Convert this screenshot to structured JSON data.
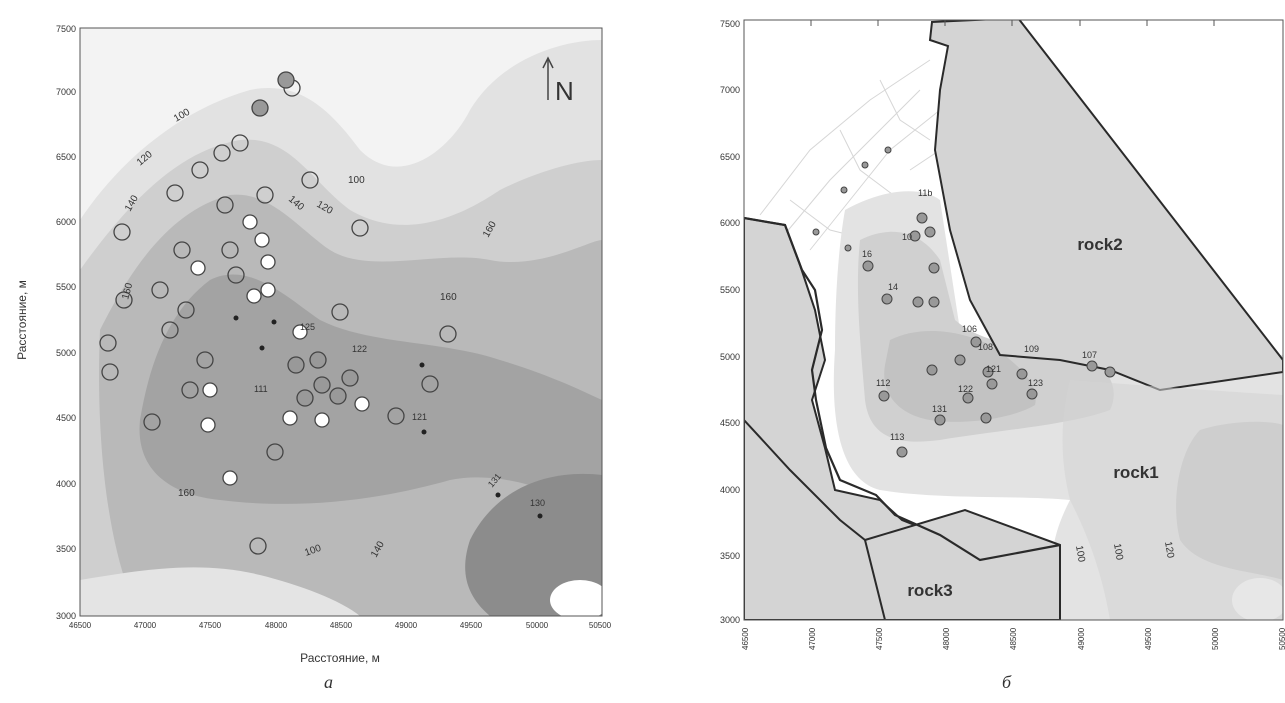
{
  "panel_a": {
    "caption": "а",
    "xlabel": "Расстояние, м",
    "ylabel": "Расстояние, м",
    "north_label": "N",
    "x_ticks": [
      "46500",
      "47000",
      "47500",
      "48000",
      "48500",
      "49000",
      "49500",
      "50000",
      "50500"
    ],
    "y_ticks": [
      "3000",
      "3500",
      "4000",
      "4500",
      "5000",
      "5500",
      "6000",
      "6500",
      "7000",
      "7500"
    ],
    "contour_labels": [
      "100",
      "120",
      "140",
      "160",
      "100",
      "120",
      "140",
      "160",
      "160",
      "160",
      "100",
      "140"
    ],
    "well_labels": [
      "122",
      "125",
      "111",
      "121",
      "131",
      "130"
    ]
  },
  "panel_b": {
    "caption": "б",
    "x_ticks": [
      "46500",
      "47000",
      "47500",
      "48000",
      "48500",
      "49000",
      "49500",
      "50000",
      "50500"
    ],
    "y_ticks": [
      "3000",
      "3500",
      "4000",
      "4500",
      "5000",
      "5500",
      "6000",
      "6500",
      "7000",
      "7500"
    ],
    "region_labels": [
      "rock2",
      "rock1",
      "rock3"
    ],
    "contour_labels": [
      "100",
      "100",
      "120"
    ],
    "well_labels": [
      "11b",
      "10",
      "16",
      "14",
      "106",
      "108",
      "109",
      "107",
      "112",
      "113",
      "131",
      "121",
      "122",
      "123"
    ]
  },
  "colors": {
    "level1": "#f1f1f1",
    "level2": "#e0e0e0",
    "level3": "#cdcdcd",
    "level4": "#b6b6b6",
    "level5": "#9d9d9d",
    "level6": "#848484",
    "rock": "#d4d4d4",
    "outline": "#2a2a2a"
  }
}
